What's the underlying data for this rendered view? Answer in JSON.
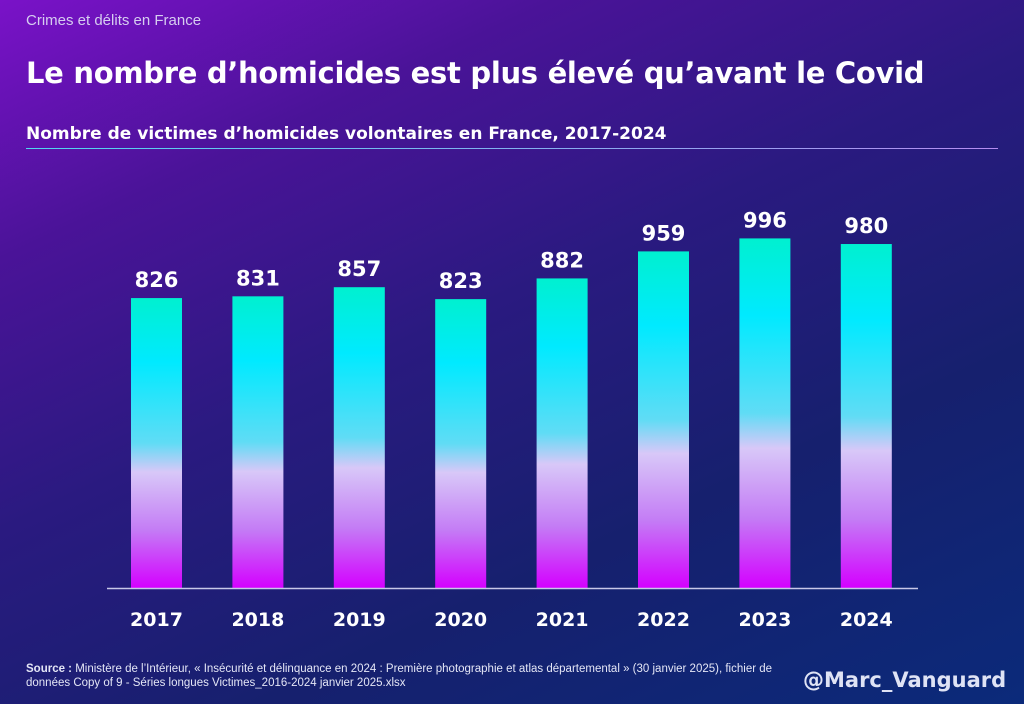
{
  "header": {
    "kicker": "Crimes et délits en France",
    "title": "Le nombre d’homicides est plus élevé qu’avant le Covid"
  },
  "chart_data": {
    "type": "bar",
    "title": "Nombre de victimes d’homicides volontaires en France, 2017-2024",
    "categories": [
      "2017",
      "2018",
      "2019",
      "2020",
      "2021",
      "2022",
      "2023",
      "2024"
    ],
    "values": [
      826,
      831,
      857,
      823,
      882,
      959,
      996,
      980
    ],
    "xlabel": "",
    "ylabel": "",
    "ylim": [
      0,
      1000
    ],
    "grid": false,
    "legend": "none",
    "colors": {
      "bar_top": "#00f0d0",
      "bar_mid": "#00eaff",
      "bar_light": "#d8c8f8",
      "bar_bottom": "#d400ff",
      "axis": "#c8c8e8"
    }
  },
  "footer": {
    "source_label": "Source :",
    "source_text": "Ministère de l’Intérieur, « Insécurité et délinquance en 2024 : Première photographie et atlas départemental » (30 janvier 2025), fichier de données Copy of 9 - Séries longues Victimes_2016-2024  janvier 2025.xlsx",
    "handle": "@Marc_Vanguard"
  }
}
